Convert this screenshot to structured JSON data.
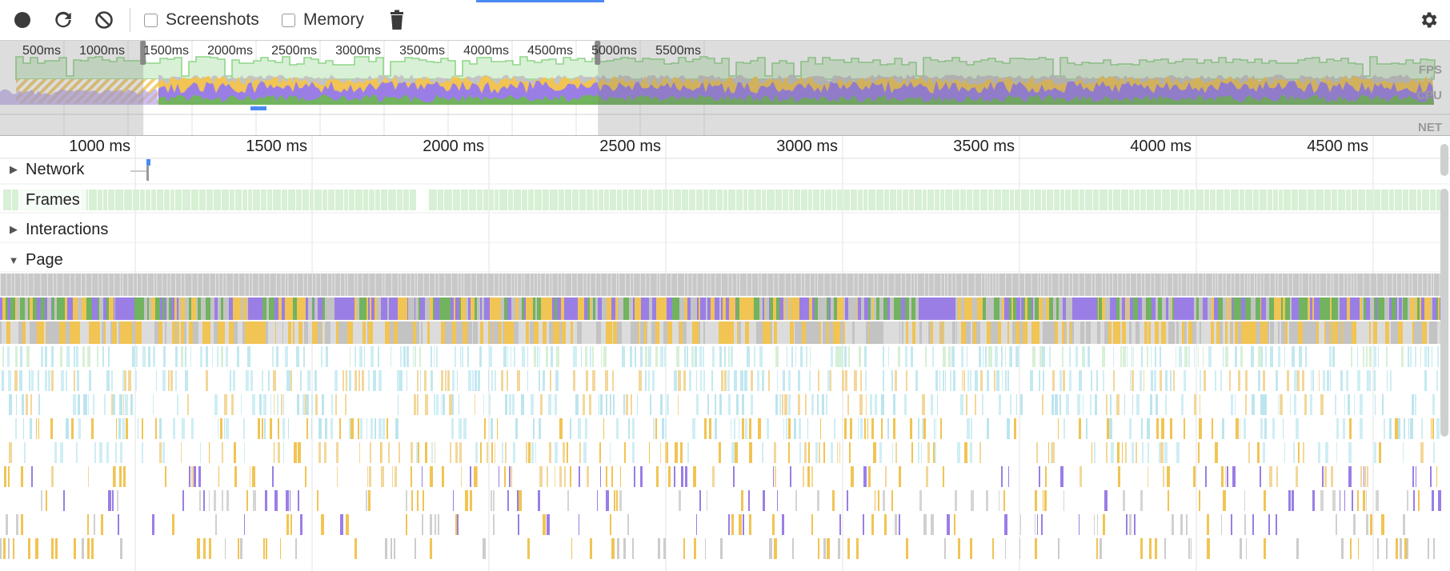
{
  "toolbar": {
    "record_icon": "record-icon",
    "reload_icon": "reload-icon",
    "clear_icon": "clear-icon",
    "screenshots_label": "Screenshots",
    "screenshots_checked": false,
    "memory_label": "Memory",
    "memory_checked": false,
    "trash_icon": "trash-icon",
    "settings_icon": "gear-icon"
  },
  "overview": {
    "ticks": [
      "500ms",
      "1000ms",
      "1500ms",
      "2000ms",
      "2500ms",
      "3000ms",
      "3500ms",
      "4000ms",
      "4500ms",
      "5000ms",
      "5500ms"
    ],
    "labels": {
      "fps": "FPS",
      "cpu": "CPU",
      "net": "NET"
    },
    "selection_start_ms": 1120,
    "selection_end_ms": 4670
  },
  "timeline": {
    "ticks": [
      "1000 ms",
      "1500 ms",
      "2000 ms",
      "2500 ms",
      "3000 ms",
      "3500 ms",
      "4000 ms",
      "4500 ms"
    ],
    "tracks": {
      "network": "Network",
      "frames": "Frames",
      "interactions": "Interactions",
      "page": "Page"
    }
  },
  "colors": {
    "scripting": "#f1c453",
    "rendering": "#9a7ee6",
    "painting": "#71b35e",
    "other": "#c3c3c3",
    "fps": "#8fd68a",
    "frame": "#d8f0d5",
    "idle_light": "#cfeef5",
    "accent": "#4a8af4"
  }
}
